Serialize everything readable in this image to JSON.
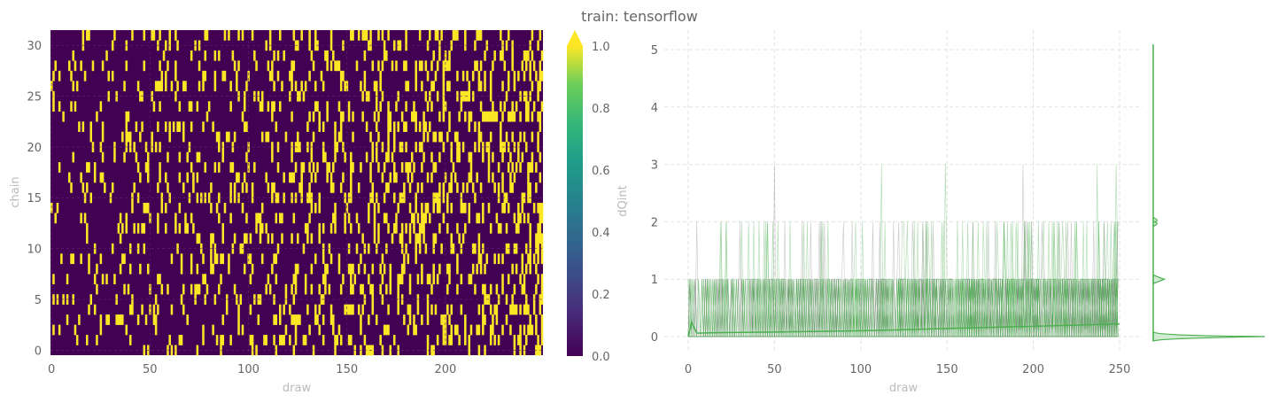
{
  "title": "train: tensorflow",
  "chart_data": [
    {
      "type": "heatmap",
      "xlabel": "draw",
      "ylabel": "chain",
      "x_range": [
        0,
        249
      ],
      "y_range": [
        0,
        31
      ],
      "x_ticks": [
        "0",
        "50",
        "100",
        "150",
        "200"
      ],
      "y_ticks": [
        "0",
        "5",
        "10",
        "15",
        "20",
        "25",
        "30"
      ],
      "values_description_levels": [
        0,
        1
      ],
      "colormap": "viridis",
      "colorbar": {
        "label": "dQint",
        "range": [
          0.0,
          1.0
        ],
        "ticks": [
          "0.0",
          "0.2",
          "0.4",
          "0.6",
          "0.8",
          "1.0"
        ],
        "extend": "max"
      },
      "fraction_of_ones_start": 0.08,
      "fraction_of_ones_end": 0.3
    },
    {
      "type": "line",
      "xlabel": "draw",
      "ylabel": "",
      "xlim": [
        0,
        250
      ],
      "ylim": [
        -0.3,
        5.3
      ],
      "x_ticks": [
        "0",
        "50",
        "100",
        "150",
        "200",
        "250"
      ],
      "y_ticks": [
        "0",
        "1",
        "2",
        "3",
        "4",
        "5"
      ],
      "grid": true,
      "series_color": "#4caf50",
      "running_mean": {
        "x": [
          0,
          2,
          5,
          20,
          50,
          100,
          150,
          200,
          250
        ],
        "y": [
          0.0,
          0.25,
          0.06,
          0.07,
          0.08,
          0.1,
          0.14,
          0.18,
          0.22
        ]
      },
      "marginal_kde": {
        "position": "right",
        "peaks": [
          {
            "y": 0,
            "density": 1.0
          },
          {
            "y": 1,
            "density": 0.1
          },
          {
            "y": 2,
            "density": 0.01
          }
        ]
      }
    }
  ]
}
